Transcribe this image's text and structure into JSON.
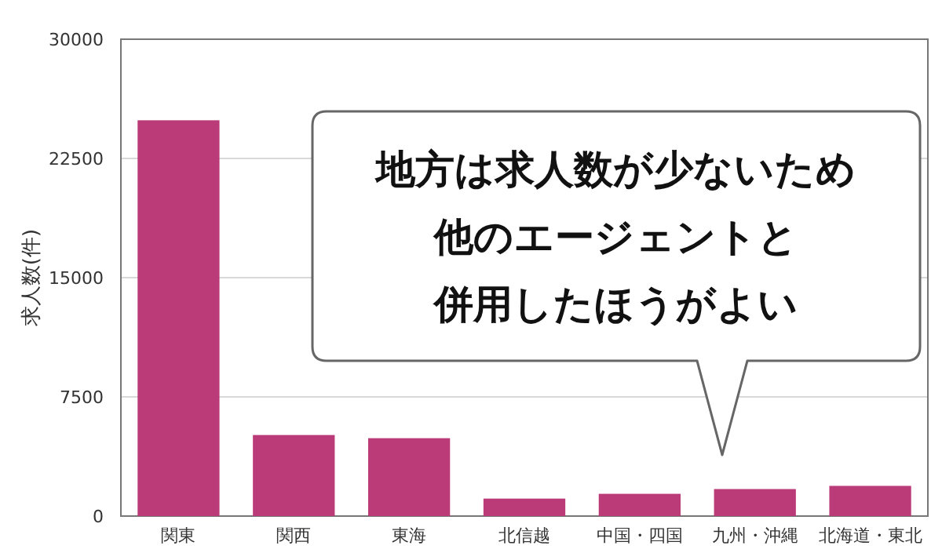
{
  "chart_data": {
    "type": "bar",
    "ylabel": "求人数(件)",
    "categories": [
      "関東",
      "関西",
      "東海",
      "北信越",
      "中国・四国",
      "九州・沖縄",
      "北海道・東北"
    ],
    "values": [
      24900,
      5100,
      4900,
      1100,
      1400,
      1700,
      1900
    ],
    "color": "#bb3a78",
    "ylim": [
      0,
      30000
    ],
    "yticks": [
      0,
      7500,
      15000,
      22500,
      30000
    ],
    "grid": "y",
    "annotations": [
      "地方は求人数が少ないため",
      "他のエージェントと",
      "併用したほうがよい"
    ]
  }
}
